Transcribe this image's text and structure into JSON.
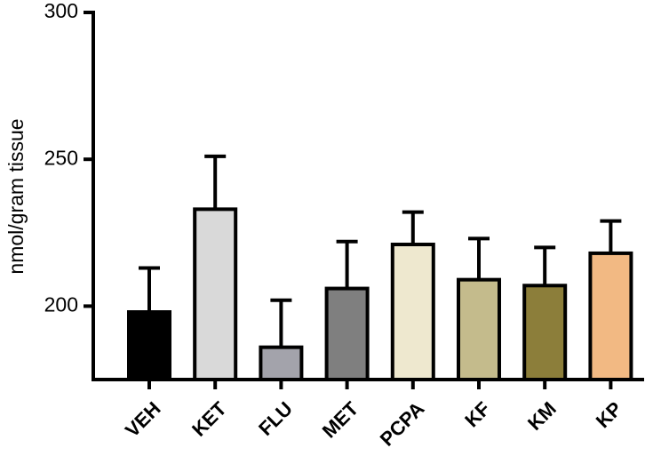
{
  "chart_data": {
    "type": "bar",
    "y_label": "nmol/gram tissue",
    "categories": [
      "VEH",
      "KET",
      "FLU",
      "MET",
      "PCPA",
      "KF",
      "KM",
      "KP"
    ],
    "values": [
      198,
      233,
      186,
      206,
      221,
      209,
      207,
      218
    ],
    "errors": [
      15,
      18,
      16,
      16,
      11,
      14,
      13,
      11
    ],
    "colors": [
      "#000000",
      "#d9d9d9",
      "#a3a3ab",
      "#7f7f7f",
      "#eee8cf",
      "#c4bb8c",
      "#8c7e3a",
      "#f2b983"
    ],
    "ylim": [
      175,
      300
    ],
    "yticks": [
      200,
      250,
      300
    ]
  }
}
